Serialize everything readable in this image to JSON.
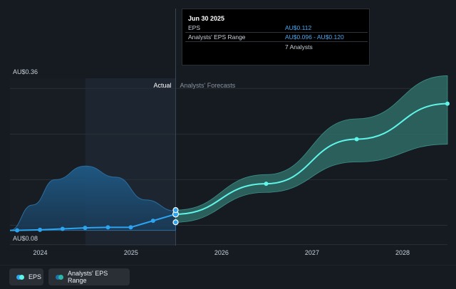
{
  "chart_data": {
    "type": "line",
    "y_axis_labels": [
      "AU$0.36",
      "AU$0.08"
    ],
    "x_tick_labels": [
      "2024",
      "2025",
      "2026",
      "2027",
      "2028"
    ],
    "xlim": [
      "2023-09-01",
      "2028-06-30"
    ],
    "ylim": [
      0.05,
      0.38
    ],
    "section_labels": {
      "actual": "Actual",
      "forecast": "Analysts' Forecasts"
    },
    "divider_date": "2025-06-30",
    "series": [
      {
        "name": "EPS",
        "kind": "actual",
        "points": [
          {
            "x": "2023-09-30",
            "y": 0.08
          },
          {
            "x": "2023-12-31",
            "y": 0.081
          },
          {
            "x": "2024-03-31",
            "y": 0.083
          },
          {
            "x": "2024-06-30",
            "y": 0.085
          },
          {
            "x": "2024-09-30",
            "y": 0.086
          },
          {
            "x": "2024-12-31",
            "y": 0.086
          },
          {
            "x": "2025-03-31",
            "y": 0.099
          },
          {
            "x": "2025-06-30",
            "y": 0.112
          }
        ]
      },
      {
        "name": "EPS",
        "kind": "forecast",
        "points": [
          {
            "x": "2025-06-30",
            "y": 0.112
          },
          {
            "x": "2026-06-30",
            "y": 0.172
          },
          {
            "x": "2027-06-30",
            "y": 0.26
          },
          {
            "x": "2028-06-30",
            "y": 0.33
          }
        ]
      },
      {
        "name": "Analysts' EPS Range",
        "kind": "range",
        "points": [
          {
            "x": "2025-06-30",
            "low": 0.096,
            "high": 0.12
          },
          {
            "x": "2026-06-30",
            "low": 0.155,
            "high": 0.19
          },
          {
            "x": "2027-06-30",
            "low": 0.215,
            "high": 0.3
          },
          {
            "x": "2028-06-30",
            "low": 0.25,
            "high": 0.385
          }
        ]
      }
    ],
    "past_range_area": {
      "points": [
        {
          "x": "2023-09-01",
          "y": 0.08
        },
        {
          "x": "2023-12-01",
          "y": 0.13
        },
        {
          "x": "2024-03-01",
          "y": 0.18
        },
        {
          "x": "2024-07-01",
          "y": 0.207
        },
        {
          "x": "2024-11-01",
          "y": 0.185
        },
        {
          "x": "2025-03-01",
          "y": 0.14
        },
        {
          "x": "2025-06-30",
          "y": 0.118
        }
      ]
    }
  },
  "tooltip": {
    "date": "Jun 30 2025",
    "rows": [
      {
        "label": "EPS",
        "value": "AU$0.112"
      },
      {
        "label": "Analysts' EPS Range",
        "value": "AU$0.096 - AU$0.120"
      }
    ],
    "analysts": "7 Analysts"
  },
  "legend": [
    {
      "label": "EPS",
      "color": "#2da4f0"
    },
    {
      "label": "Analysts' EPS Range",
      "color": "#2ab8a8"
    }
  ],
  "colors": {
    "eps_line": "#2da4f0",
    "forecast_line": "#5ff5e8",
    "range_fill": "#2f6b66",
    "past_area": "#1f5a86",
    "shade_region": "#1c2530"
  }
}
